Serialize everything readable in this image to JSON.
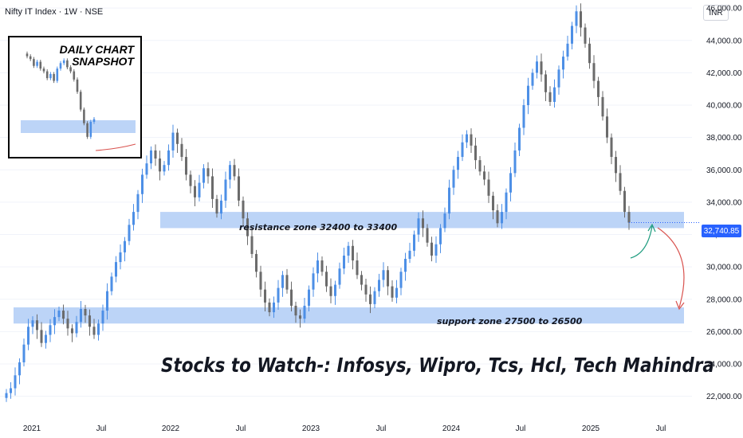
{
  "header": {
    "symbol_title": "Nifty IT Index · 1W · NSE",
    "currency": "INR",
    "last_price_label": "32,740.85"
  },
  "headline": "Stocks to Watch-: Infosys, Wipro, Tcs, Hcl, Tech Mahindra",
  "inset": {
    "title_line1": "DAILY CHART",
    "title_line2": "SNAPSHOT"
  },
  "zones": {
    "resistance_label": "resistance zone 32400 to 33400",
    "support_label": "support zone 27500 to 26500"
  },
  "colors": {
    "bull": "#4d8fe6",
    "bear": "#6b6b6b",
    "zone_fill": "#bcd4f7",
    "accent": "#2962ff",
    "arrow_up": "#1e9c7f",
    "arrow_down": "#d9534f"
  },
  "chart_data": {
    "type": "candlestick",
    "title": "",
    "xlabel": "",
    "ylabel": "",
    "ylim": [
      21000,
      46500
    ],
    "x_tick_labels": [
      "2021",
      "Jul",
      "2022",
      "Jul",
      "2023",
      "Jul",
      "2024",
      "Jul",
      "2025",
      "Jul"
    ],
    "y_tick_labels": [
      "22,000.00",
      "24,000.00",
      "26,000.00",
      "28,000.00",
      "30,000.00",
      "32,000.00",
      "34,000.00",
      "36,000.00",
      "38,000.00",
      "40,000.00",
      "42,000.00",
      "44,000.00",
      "46,000.00"
    ],
    "y_tick_values": [
      22000,
      24000,
      26000,
      28000,
      30000,
      32000,
      34000,
      36000,
      38000,
      40000,
      42000,
      44000,
      46000
    ],
    "resistance_zone": [
      32400,
      33400
    ],
    "support_zone": [
      26500,
      27500
    ],
    "last_price": 32740.85,
    "closes": [
      22200,
      22500,
      23300,
      24100,
      25200,
      26300,
      26700,
      26100,
      25300,
      25800,
      26400,
      26900,
      27300,
      26800,
      26200,
      25900,
      26600,
      27400,
      27000,
      26300,
      25800,
      26500,
      27300,
      28500,
      29400,
      30300,
      30900,
      31600,
      32600,
      33400,
      34500,
      35700,
      36400,
      37200,
      36700,
      35900,
      36300,
      37200,
      38300,
      37600,
      36800,
      35700,
      35000,
      34300,
      35200,
      36100,
      35600,
      34200,
      33300,
      34100,
      35400,
      36300,
      35600,
      34100,
      33000,
      31900,
      30800,
      29700,
      28600,
      27800,
      27200,
      27800,
      28700,
      29500,
      28600,
      27600,
      27000,
      26800,
      27600,
      28600,
      29600,
      30400,
      29700,
      28800,
      28200,
      28900,
      29900,
      30700,
      31300,
      30400,
      29500,
      28900,
      28300,
      27700,
      28500,
      29200,
      29800,
      28800,
      28100,
      28700,
      29700,
      30500,
      31000,
      32000,
      33000,
      32400,
      31500,
      30700,
      31400,
      32400,
      33300,
      34900,
      36000,
      36800,
      37700,
      38200,
      37500,
      36600,
      35900,
      35400,
      34400,
      33500,
      32700,
      33400,
      34600,
      35800,
      37200,
      38600,
      40000,
      41200,
      42000,
      42700,
      41900,
      40800,
      40200,
      41100,
      42200,
      43000,
      43800,
      44900,
      45800,
      44800,
      43800,
      42600,
      41500,
      40500,
      39300,
      38000,
      36800,
      35800,
      34700,
      33400,
      32740
    ],
    "inset_closes": [
      44200,
      44000,
      43500,
      43800,
      43300,
      43100,
      42600,
      42900,
      42400,
      43300,
      43700,
      43900,
      43400,
      43100,
      42500,
      41600,
      40300,
      39300,
      38300,
      39400,
      39600
    ]
  }
}
